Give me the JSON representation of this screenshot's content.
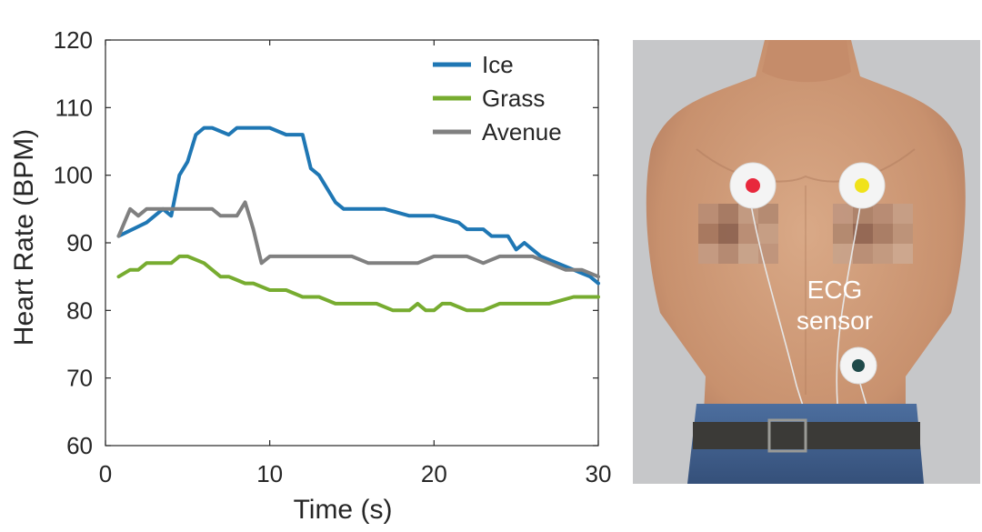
{
  "chart_data": {
    "type": "line",
    "xlabel": "Time (s)",
    "ylabel": "Heart Rate (BPM)",
    "xlim": [
      0,
      30
    ],
    "ylim": [
      60,
      120
    ],
    "xticks": [
      0,
      10,
      20,
      30
    ],
    "yticks": [
      60,
      70,
      80,
      90,
      100,
      110,
      120
    ],
    "grid": false,
    "legend": "top-right",
    "series": [
      {
        "name": "Ice",
        "color": "#1f77b4",
        "x": [
          0.8,
          2.5,
          3.5,
          4.0,
          4.5,
          5.0,
          5.5,
          6.0,
          6.5,
          7.5,
          8.0,
          8.5,
          9.0,
          10.0,
          11.0,
          12.0,
          12.5,
          13.0,
          14.0,
          14.5,
          16.0,
          17.0,
          18.5,
          20.0,
          21.5,
          22.0,
          23.0,
          23.5,
          24.5,
          25.0,
          25.5,
          26.5,
          27.5,
          28.5,
          29.5,
          30.0
        ],
        "y": [
          91,
          93,
          95,
          94,
          100,
          102,
          106,
          107,
          107,
          106,
          107,
          107,
          107,
          107,
          106,
          106,
          101,
          100,
          96,
          95,
          95,
          95,
          94,
          94,
          93,
          92,
          92,
          91,
          91,
          89,
          90,
          88,
          87,
          86,
          85,
          84
        ]
      },
      {
        "name": "Grass",
        "color": "#77ac30",
        "x": [
          0.8,
          1.5,
          2.0,
          2.5,
          3.0,
          4.0,
          4.5,
          5.0,
          6.0,
          7.0,
          7.5,
          8.5,
          9.0,
          10.0,
          11.0,
          12.0,
          13.0,
          14.0,
          16.0,
          16.5,
          17.5,
          18.5,
          19.0,
          19.5,
          20.0,
          20.5,
          21.0,
          22.0,
          23.0,
          24.0,
          25.0,
          26.0,
          27.0,
          28.5,
          29.0,
          30.0
        ],
        "y": [
          85,
          86,
          86,
          87,
          87,
          87,
          88,
          88,
          87,
          85,
          85,
          84,
          84,
          83,
          83,
          82,
          82,
          81,
          81,
          81,
          80,
          80,
          81,
          80,
          80,
          81,
          81,
          80,
          80,
          81,
          81,
          81,
          81,
          82,
          82,
          82
        ]
      },
      {
        "name": "Avenue",
        "color": "#808080",
        "x": [
          0.8,
          1.5,
          2.0,
          2.5,
          3.0,
          4.0,
          5.0,
          6.0,
          6.5,
          7.0,
          7.5,
          8.0,
          8.5,
          9.0,
          9.5,
          10.0,
          11.0,
          12.0,
          13.0,
          14.0,
          15.0,
          16.0,
          17.0,
          18.0,
          19.0,
          20.0,
          21.0,
          22.0,
          23.0,
          24.0,
          25.0,
          26.0,
          27.0,
          28.0,
          29.0,
          30.0
        ],
        "y": [
          91,
          95,
          94,
          95,
          95,
          95,
          95,
          95,
          95,
          94,
          94,
          94,
          96,
          92,
          87,
          88,
          88,
          88,
          88,
          88,
          88,
          87,
          87,
          87,
          87,
          88,
          88,
          88,
          87,
          88,
          88,
          88,
          87,
          86,
          86,
          85
        ]
      }
    ]
  },
  "photo": {
    "label_line1": "ECG",
    "label_line2": "sensor",
    "electrode_colors": [
      "#e8283c",
      "#f0e21a",
      "#1f4a4a"
    ]
  }
}
